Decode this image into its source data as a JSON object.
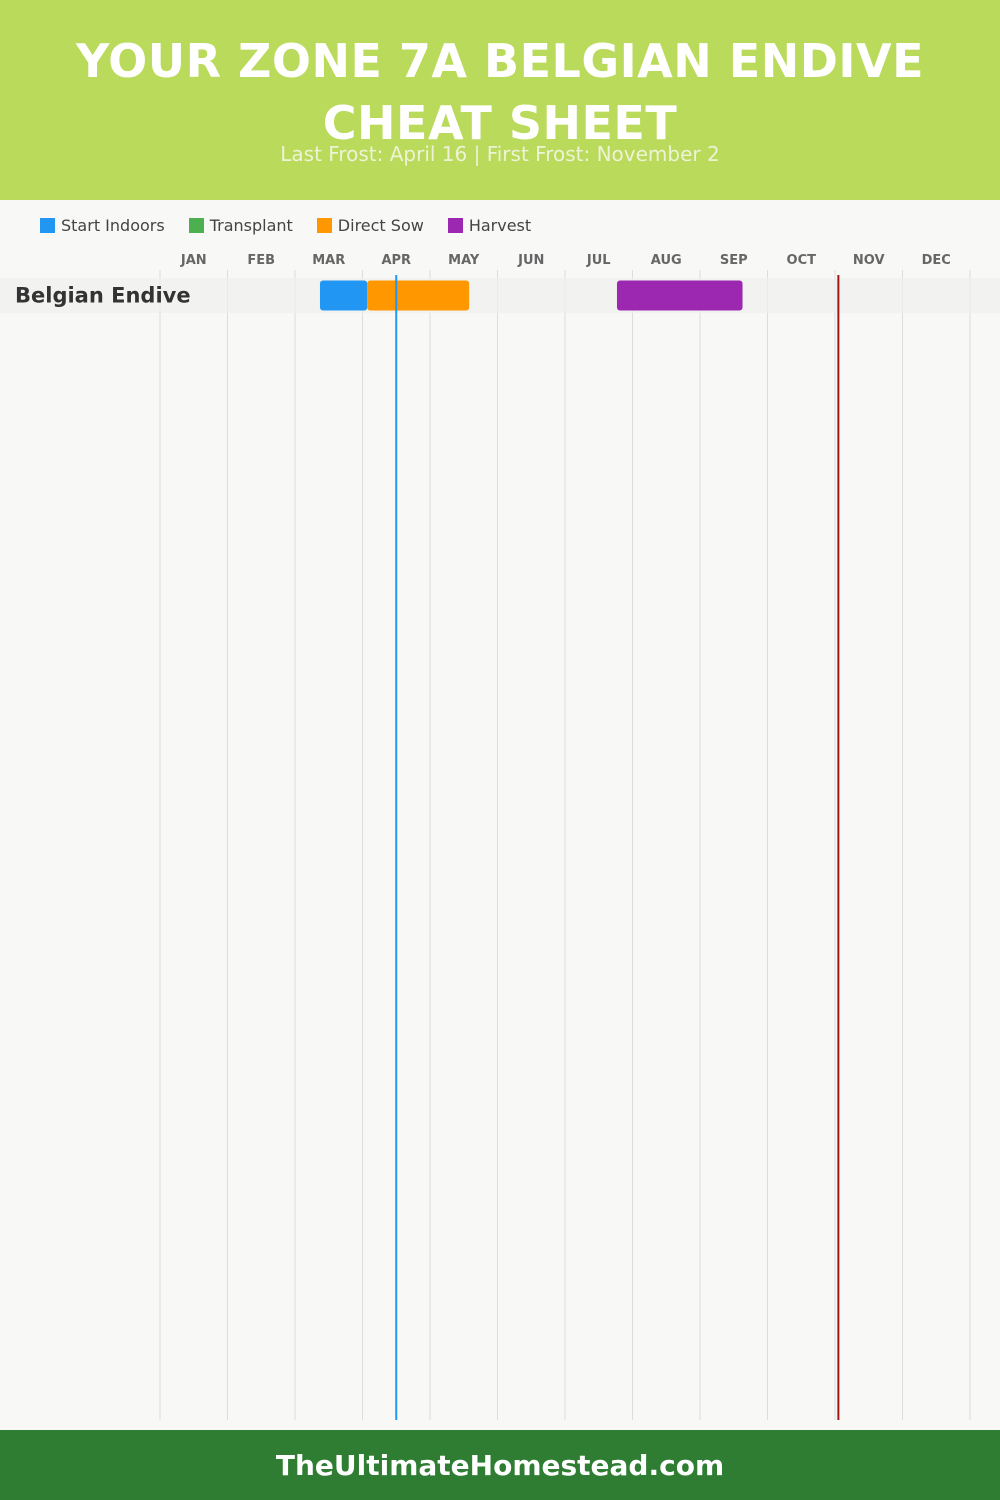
{
  "header": {
    "title": "YOUR ZONE 7A BELGIAN ENDIVE CHEAT SHEET",
    "subtitle": "Last Frost: April 16 | First Frost: November 2"
  },
  "legend": [
    {
      "label": "Start Indoors",
      "color": "#2196f3"
    },
    {
      "label": "Transplant",
      "color": "#4caf50"
    },
    {
      "label": "Direct Sow",
      "color": "#ff9800"
    },
    {
      "label": "Harvest",
      "color": "#9c27b0"
    }
  ],
  "footer": {
    "text": "TheUltimateHomestead.com"
  },
  "chart_data": {
    "type": "gantt",
    "months": [
      "JAN",
      "FEB",
      "MAR",
      "APR",
      "MAY",
      "JUN",
      "JUL",
      "AUG",
      "SEP",
      "OCT",
      "NOV",
      "DEC"
    ],
    "crops": [
      {
        "name": "Belgian Endive",
        "bars": [
          {
            "phase": "Start Indoors",
            "start_month": 2.37,
            "end_month": 3.07
          },
          {
            "phase": "Direct Sow",
            "start_month": 3.07,
            "end_month": 4.58
          },
          {
            "phase": "Harvest",
            "start_month": 6.77,
            "end_month": 8.63
          }
        ]
      }
    ],
    "markers": [
      {
        "label": "Last Frost",
        "date": "April 16",
        "month_pos": 3.5,
        "color": "#2196f3"
      },
      {
        "label": "First Frost",
        "date": "November 2",
        "month_pos": 10.05,
        "color": "#a31515"
      }
    ],
    "grid": true
  }
}
